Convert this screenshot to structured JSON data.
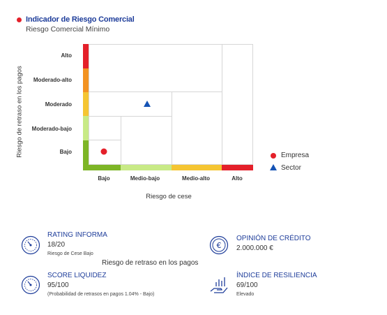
{
  "header": {
    "title": "Indicador de Riesgo Comercial",
    "subtitle": "Riesgo Comercial Mínimo"
  },
  "chart_data": {
    "type": "scatter",
    "xlabel": "Riesgo de cese",
    "ylabel": "Riesgo de retraso en los pagos",
    "x_categories": [
      "Bajo",
      "Medio-bajo",
      "Medio-alto",
      "Alto"
    ],
    "y_categories": [
      "Bajo",
      "Moderado-bajo",
      "Moderado",
      "Moderado-alto",
      "Alto"
    ],
    "series": [
      {
        "name": "Empresa",
        "marker": "circle",
        "color": "#e4202a",
        "x": "Bajo",
        "y": "Bajo"
      },
      {
        "name": "Sector",
        "marker": "triangle",
        "color": "#1553b5",
        "x": "Medio-bajo",
        "y": "Moderado"
      }
    ],
    "x_scale_colors": [
      "#7db526",
      "#c8ea86",
      "#f5c532",
      "#e4202a"
    ],
    "y_scale_colors": [
      "#7db526",
      "#c8ea86",
      "#f5c532",
      "#f39322",
      "#e4202a"
    ],
    "legend_position": "right"
  },
  "cards": {
    "rating": {
      "title": "RATING INFORMA",
      "value": "18/20",
      "note": "Riesgo de Cese Bajo",
      "icon": "gauge-icon"
    },
    "credit": {
      "title": "OPINIÓN DE CRÉDITO",
      "value": "2.000.000 €",
      "icon": "euro-coin-icon"
    },
    "liquidity": {
      "title": "SCORE LIQUIDEZ",
      "value": "95/100",
      "note": "(Probabilidad de retrasos en pagos 1.04% - Bajo)",
      "icon": "gauge-icon"
    },
    "resilience": {
      "title": "ÍNDICE DE RESILIENCIA",
      "value": "69/100",
      "note": "Elevado",
      "icon": "hand-chart-icon"
    }
  },
  "middle_label": "Riesgo de retraso en los pagos"
}
